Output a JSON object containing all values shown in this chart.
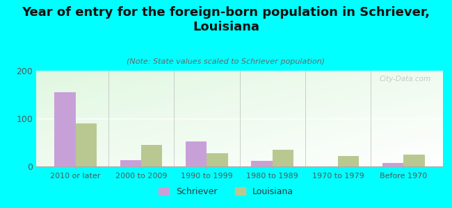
{
  "title": "Year of entry for the foreign-born population in Schriever,\nLouisiana",
  "subtitle": "(Note: State values scaled to Schriever population)",
  "categories": [
    "2010 or later",
    "2000 to 2009",
    "1990 to 1999",
    "1980 to 1989",
    "1970 to 1979",
    "Before 1970"
  ],
  "schriever_values": [
    155,
    13,
    52,
    11,
    0,
    7
  ],
  "louisiana_values": [
    90,
    45,
    28,
    35,
    22,
    25
  ],
  "schriever_color": "#c8a0d8",
  "louisiana_color": "#b8c890",
  "bg_color": "#00ffff",
  "ylim": [
    0,
    200
  ],
  "yticks": [
    0,
    100,
    200
  ],
  "watermark": "City-Data.com",
  "legend_labels": [
    "Schriever",
    "Louisiana"
  ],
  "title_fontsize": 13,
  "subtitle_fontsize": 8,
  "tick_fontsize": 8,
  "bar_width": 0.32
}
